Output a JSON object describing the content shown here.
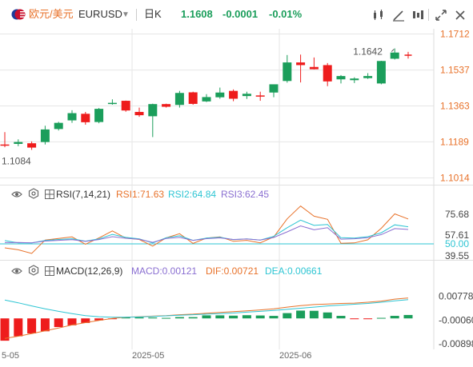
{
  "header": {
    "symbol_name": "欧元/美元",
    "symbol_code": "EURUSD",
    "timeframe": "日K",
    "last_price": "1.1608",
    "change": "-0.0001",
    "change_pct": "-0.01%",
    "icons": [
      "flag-icon",
      "dropdown-icon",
      "candle-type-icon",
      "draw-tool-icon",
      "indicator-settings-icon",
      "expand-icon",
      "close-icon"
    ]
  },
  "colors": {
    "up": "#1b9e5b",
    "down": "#ee1c1c",
    "accent": "#e8722a",
    "rsi2": "#2ec5d3",
    "rsi3": "#8a6fd1",
    "dea": "#2ec5d3",
    "grid": "#e6e6e6"
  },
  "price_axis": {
    "ticks": [
      "1.1712",
      "1.1537",
      "1.1363",
      "1.1189",
      "1.1014"
    ],
    "high_label": "1.1642",
    "low_label": "1.1084"
  },
  "rsi": {
    "title": "RSI(7,14,21)",
    "rsi1": "RSI1:71.63",
    "rsi2": "RSI2:64.84",
    "rsi3": "RSI3:62.45",
    "ticks": [
      "75.68",
      "57.61",
      "50.00",
      "39.55"
    ]
  },
  "macd": {
    "title": "MACD(12,26,9)",
    "macd": "MACD:0.00121",
    "dif": "DIF:0.00721",
    "dea": "DEA:0.00661",
    "ticks": [
      "0.00778",
      "-0.00060",
      "-0.00898"
    ]
  },
  "x_axis": {
    "labels": [
      "5-05",
      "2025-05",
      "2025-06"
    ]
  },
  "chart_data": [
    {
      "type": "candlestick",
      "title": "",
      "ylim": [
        1.1014,
        1.1712
      ],
      "yticks": [
        1.1712,
        1.1537,
        1.1363,
        1.1189,
        1.1014
      ],
      "annotations": [
        {
          "text": "1.1642",
          "value": 1.1642
        },
        {
          "text": "1.1084",
          "value": 1.1084
        }
      ],
      "candles": [
        {
          "o": 1.1176,
          "h": 1.1236,
          "l": 1.1163,
          "c": 1.1176
        },
        {
          "o": 1.1179,
          "h": 1.1201,
          "l": 1.1168,
          "c": 1.1188
        },
        {
          "o": 1.1182,
          "h": 1.1191,
          "l": 1.115,
          "c": 1.1161
        },
        {
          "o": 1.1188,
          "h": 1.1267,
          "l": 1.1176,
          "c": 1.1249
        },
        {
          "o": 1.1251,
          "h": 1.1286,
          "l": 1.1244,
          "c": 1.1281
        },
        {
          "o": 1.1293,
          "h": 1.1342,
          "l": 1.1281,
          "c": 1.1328
        },
        {
          "o": 1.1325,
          "h": 1.1334,
          "l": 1.1272,
          "c": 1.1284
        },
        {
          "o": 1.1285,
          "h": 1.1353,
          "l": 1.1279,
          "c": 1.1349
        },
        {
          "o": 1.1373,
          "h": 1.1395,
          "l": 1.1369,
          "c": 1.1378
        },
        {
          "o": 1.1388,
          "h": 1.1389,
          "l": 1.1335,
          "c": 1.1341
        },
        {
          "o": 1.1334,
          "h": 1.1355,
          "l": 1.131,
          "c": 1.1318
        },
        {
          "o": 1.1313,
          "h": 1.1374,
          "l": 1.1212,
          "c": 1.1372
        },
        {
          "o": 1.1372,
          "h": 1.1374,
          "l": 1.1355,
          "c": 1.1359
        },
        {
          "o": 1.1368,
          "h": 1.1436,
          "l": 1.1355,
          "c": 1.1426
        },
        {
          "o": 1.1429,
          "h": 1.1432,
          "l": 1.1369,
          "c": 1.1373
        },
        {
          "o": 1.1385,
          "h": 1.142,
          "l": 1.1382,
          "c": 1.1406
        },
        {
          "o": 1.1405,
          "h": 1.1452,
          "l": 1.1398,
          "c": 1.1428
        },
        {
          "o": 1.1436,
          "h": 1.1443,
          "l": 1.1386,
          "c": 1.1398
        },
        {
          "o": 1.1411,
          "h": 1.1432,
          "l": 1.1397,
          "c": 1.1422
        },
        {
          "o": 1.1414,
          "h": 1.1432,
          "l": 1.1388,
          "c": 1.1412
        },
        {
          "o": 1.1428,
          "h": 1.1466,
          "l": 1.1405,
          "c": 1.1468
        },
        {
          "o": 1.1484,
          "h": 1.161,
          "l": 1.1476,
          "c": 1.1574
        },
        {
          "o": 1.1574,
          "h": 1.1612,
          "l": 1.1477,
          "c": 1.1561
        },
        {
          "o": 1.1552,
          "h": 1.1598,
          "l": 1.154,
          "c": 1.1541
        },
        {
          "o": 1.1561,
          "h": 1.1571,
          "l": 1.1459,
          "c": 1.1482
        },
        {
          "o": 1.1492,
          "h": 1.1513,
          "l": 1.1472,
          "c": 1.1508
        },
        {
          "o": 1.1488,
          "h": 1.1502,
          "l": 1.1474,
          "c": 1.1496
        },
        {
          "o": 1.1498,
          "h": 1.1522,
          "l": 1.1494,
          "c": 1.1508
        },
        {
          "o": 1.1472,
          "h": 1.1582,
          "l": 1.1468,
          "c": 1.1581
        },
        {
          "o": 1.1592,
          "h": 1.1642,
          "l": 1.1588,
          "c": 1.1622
        },
        {
          "o": 1.1612,
          "h": 1.1625,
          "l": 1.1593,
          "c": 1.1608
        }
      ]
    },
    {
      "type": "line",
      "title": "RSI(7,14,21)",
      "ylim": [
        39.55,
        84
      ],
      "hline": 50.0,
      "series": [
        {
          "name": "RSI1",
          "values": [
            46.5,
            44.8,
            41.6,
            53.3,
            54.6,
            56.0,
            49.6,
            55.1,
            61.2,
            55.0,
            53.8,
            48.0,
            55.2,
            58.8,
            50.4,
            55.0,
            56.1,
            52.2,
            53.0,
            50.9,
            56.0,
            71.7,
            82.8,
            74.0,
            71.3,
            50.5,
            50.8,
            53.5,
            63.5,
            76.0,
            71.6
          ]
        },
        {
          "name": "RSI2",
          "values": [
            52.8,
            50.8,
            50.8,
            52.9,
            53.8,
            54.4,
            52.3,
            54.3,
            58.2,
            55.6,
            54.3,
            50.8,
            55.3,
            57.0,
            53.0,
            55.0,
            55.7,
            53.6,
            54.3,
            53.3,
            56.5,
            64.0,
            70.6,
            66.0,
            66.8,
            55.3,
            55.0,
            56.2,
            59.6,
            66.5,
            64.8
          ]
        },
        {
          "name": "RSI3",
          "values": [
            51.1,
            51.2,
            50.9,
            52.4,
            53.0,
            53.6,
            52.1,
            53.7,
            56.2,
            54.8,
            53.9,
            51.3,
            54.6,
            55.6,
            53.0,
            54.5,
            55.2,
            53.8,
            54.2,
            53.2,
            55.5,
            60.4,
            65.6,
            62.2,
            64.0,
            54.1,
            54.4,
            55.3,
            58.0,
            63.2,
            62.5
          ]
        }
      ]
    },
    {
      "type": "bar",
      "title": "MACD(12,26,9)",
      "ylim": [
        -0.00898,
        0.01108
      ],
      "yticks": [
        0.00778,
        -0.0006,
        -0.00898
      ],
      "bars": [
        -0.00788,
        -0.00632,
        -0.00531,
        -0.00455,
        -0.00305,
        -0.00243,
        -0.00161,
        -0.0007,
        -0.00011,
        0.00034,
        0.0004,
        0.00032,
        0.00018,
        0.00047,
        0.00044,
        0.00108,
        0.00108,
        0.00097,
        0.00113,
        0.00103,
        0.00089,
        0.00187,
        0.00276,
        0.00268,
        0.0021,
        0.0009,
        -0.00022,
        -0.00016,
        0.00019,
        0.0009,
        0.00121
      ],
      "series": [
        {
          "name": "DIF",
          "values": [
            -0.0071,
            -0.0063,
            -0.0054,
            -0.0044,
            -0.0034,
            -0.0023,
            -0.0015,
            -0.0007,
            0.0,
            0.0004,
            0.0006,
            0.0008,
            0.001,
            0.0013,
            0.0015,
            0.0018,
            0.0021,
            0.0024,
            0.0027,
            0.003,
            0.0034,
            0.004,
            0.0045,
            0.0049,
            0.0051,
            0.0053,
            0.0054,
            0.0057,
            0.0061,
            0.0068,
            0.00721
          ]
        },
        {
          "name": "DEA",
          "values": [
            0.0065,
            0.0055,
            0.0044,
            0.0034,
            0.0025,
            0.0017,
            0.001,
            0.0006,
            0.0004,
            0.0004,
            0.0005,
            0.0007,
            0.0009,
            0.0011,
            0.0013,
            0.0015,
            0.0017,
            0.0019,
            0.0022,
            0.0025,
            0.0028,
            0.0032,
            0.0036,
            0.004,
            0.0044,
            0.0047,
            0.005,
            0.0053,
            0.0057,
            0.0062,
            0.00661
          ]
        }
      ]
    }
  ]
}
